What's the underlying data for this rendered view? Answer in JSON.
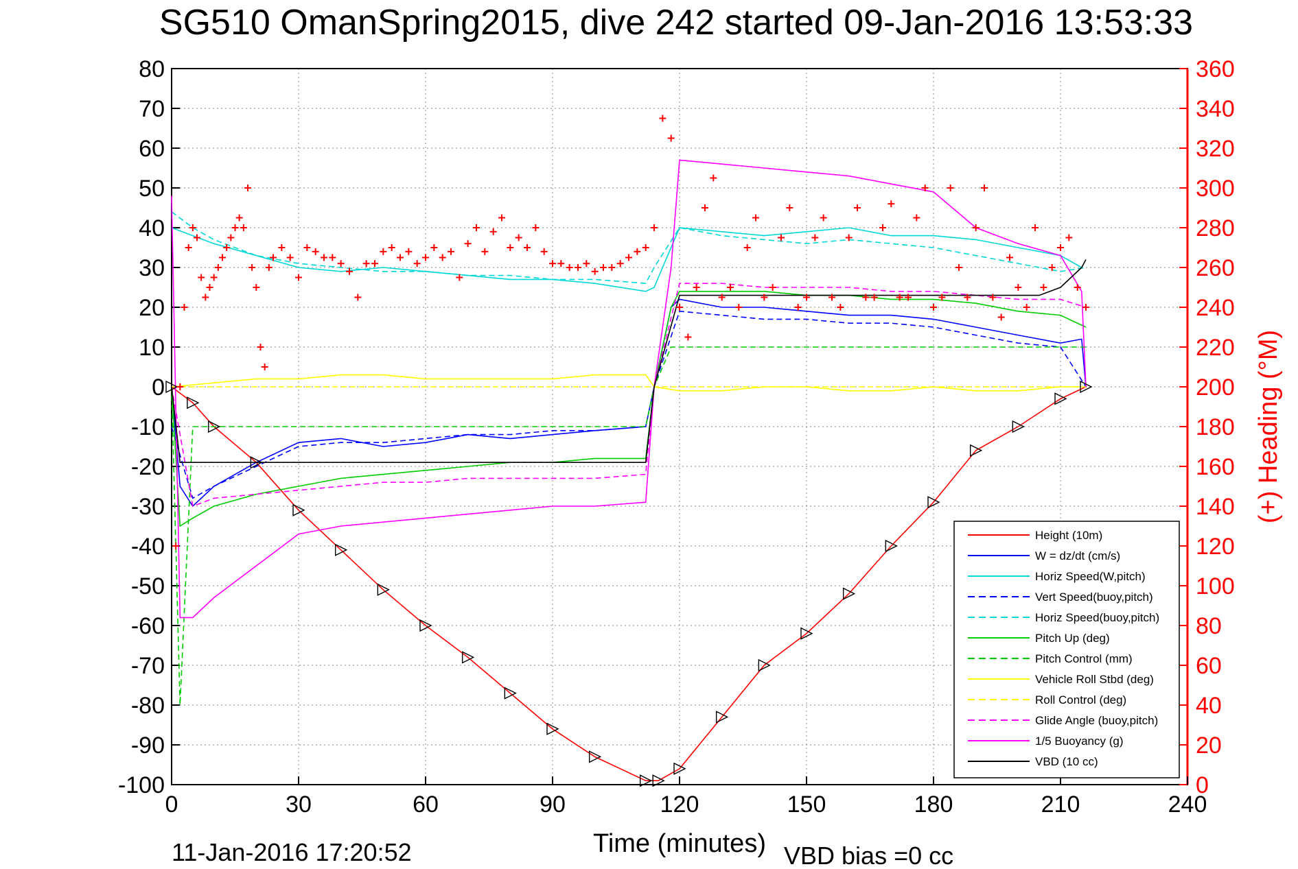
{
  "chart_data": {
    "type": "line",
    "title": "SG510 OmanSpring2015, dive 242 started 09-Jan-2016 13:53:33",
    "xlabel": "Time (minutes)",
    "ylabel_right": "(+) Heading (°M)",
    "footer_left": "11-Jan-2016 17:20:52",
    "footer_right": "VBD bias =0 cc",
    "xlim": [
      0,
      240
    ],
    "ylim": [
      -100,
      80
    ],
    "ylim_right": [
      0,
      360
    ],
    "x_ticks": [
      0,
      30,
      60,
      90,
      120,
      150,
      180,
      210,
      240
    ],
    "y_ticks": [
      -100,
      -90,
      -80,
      -70,
      -60,
      -50,
      -40,
      -30,
      -20,
      -10,
      0,
      10,
      20,
      30,
      40,
      50,
      60,
      70,
      80
    ],
    "y_ticks_right": [
      0,
      20,
      40,
      60,
      80,
      100,
      120,
      140,
      160,
      180,
      200,
      220,
      240,
      260,
      280,
      300,
      320,
      340,
      360
    ],
    "grid": true,
    "legend_position": "bottom-right",
    "series": [
      {
        "name": "Height (10m)",
        "color": "#ff0000",
        "style": "solid",
        "x": [
          0,
          5,
          10,
          20,
          30,
          40,
          50,
          60,
          70,
          80,
          90,
          100,
          112,
          115,
          120,
          130,
          140,
          150,
          160,
          170,
          180,
          190,
          200,
          210,
          216
        ],
        "y": [
          0,
          -4,
          -10,
          -19,
          -31,
          -41,
          -51,
          -60,
          -68,
          -77,
          -86,
          -93,
          -99,
          -99,
          -96,
          -83,
          -70,
          -62,
          -52,
          -40,
          -29,
          -16,
          -10,
          -3,
          0
        ]
      },
      {
        "name": "W = dz/dt (cm/s)",
        "color": "#0000ff",
        "style": "solid",
        "x": [
          0,
          2,
          5,
          10,
          20,
          30,
          40,
          50,
          60,
          70,
          80,
          90,
          100,
          112,
          114,
          118,
          120,
          130,
          140,
          150,
          160,
          170,
          180,
          190,
          200,
          210,
          215,
          216
        ],
        "y": [
          0,
          -25,
          -30,
          -25,
          -19,
          -14,
          -13,
          -15,
          -14,
          -12,
          -13,
          -12,
          -11,
          -10,
          0,
          20,
          22,
          20,
          20,
          19,
          18,
          18,
          17,
          15,
          13,
          11,
          12,
          0
        ]
      },
      {
        "name": "Horiz Speed(W,pitch)",
        "color": "#00d8d8",
        "style": "solid",
        "x": [
          0,
          5,
          10,
          20,
          30,
          40,
          50,
          60,
          70,
          80,
          90,
          100,
          112,
          114,
          116,
          120,
          130,
          140,
          150,
          160,
          170,
          180,
          190,
          200,
          210,
          215
        ],
        "y": [
          40,
          38,
          36,
          33,
          30,
          29,
          30,
          29,
          28,
          27,
          27,
          26,
          24,
          25,
          30,
          40,
          39,
          38,
          39,
          40,
          38,
          38,
          37,
          35,
          33,
          30
        ]
      },
      {
        "name": "Vert Speed(buoy,pitch)",
        "color": "#0000ff",
        "style": "dashed",
        "x": [
          0,
          5,
          10,
          20,
          30,
          40,
          50,
          60,
          70,
          80,
          90,
          100,
          112,
          114,
          120,
          130,
          140,
          150,
          160,
          170,
          180,
          190,
          200,
          210,
          216
        ],
        "y": [
          -10,
          -28,
          -25,
          -20,
          -15,
          -14,
          -14,
          -13,
          -12,
          -12,
          -11,
          -11,
          -10,
          0,
          19,
          18,
          17,
          17,
          16,
          16,
          15,
          13,
          11,
          10,
          0
        ]
      },
      {
        "name": "Horiz Speed(buoy,pitch)",
        "color": "#00d8d8",
        "style": "dashed",
        "x": [
          0,
          5,
          10,
          20,
          30,
          40,
          50,
          60,
          70,
          80,
          90,
          100,
          112,
          114,
          120,
          130,
          140,
          150,
          160,
          170,
          180,
          190,
          200,
          210,
          216
        ],
        "y": [
          44,
          40,
          37,
          33,
          31,
          30,
          29,
          29,
          28,
          28,
          27,
          27,
          26,
          30,
          40,
          38,
          37,
          36,
          37,
          36,
          35,
          33,
          31,
          29,
          30
        ]
      },
      {
        "name": "Pitch Up (deg)",
        "color": "#00cc00",
        "style": "solid",
        "x": [
          0,
          2,
          5,
          10,
          20,
          30,
          40,
          50,
          60,
          70,
          80,
          90,
          100,
          112,
          114,
          118,
          120,
          130,
          140,
          150,
          160,
          170,
          180,
          190,
          200,
          210,
          216
        ],
        "y": [
          0,
          -35,
          -33,
          -30,
          -27,
          -25,
          -23,
          -22,
          -21,
          -20,
          -19,
          -19,
          -18,
          -18,
          0,
          20,
          24,
          24,
          24,
          23,
          23,
          22,
          22,
          21,
          19,
          18,
          15
        ]
      },
      {
        "name": "Pitch Control (mm)",
        "color": "#00cc00",
        "style": "dashed",
        "x": [
          0,
          2,
          5,
          112,
          114,
          118,
          215,
          216
        ],
        "y": [
          0,
          -80,
          -10,
          -10,
          0,
          10,
          10,
          10
        ]
      },
      {
        "name": "Vehicle Roll Stbd (deg)",
        "color": "#ffff00",
        "style": "solid",
        "x": [
          0,
          10,
          20,
          30,
          40,
          50,
          60,
          70,
          80,
          90,
          100,
          112,
          114,
          120,
          130,
          140,
          150,
          160,
          170,
          180,
          190,
          200,
          210,
          216
        ],
        "y": [
          0,
          1,
          2,
          2,
          3,
          3,
          2,
          2,
          2,
          2,
          3,
          3,
          0,
          -1,
          -1,
          0,
          0,
          -1,
          -1,
          0,
          -1,
          -1,
          0,
          0
        ]
      },
      {
        "name": "Roll Control (deg)",
        "color": "#ffff00",
        "style": "dashed",
        "x": [
          0,
          112,
          114,
          216
        ],
        "y": [
          0,
          0,
          0,
          0
        ]
      },
      {
        "name": "Glide Angle (buoy,pitch)",
        "color": "#ff00ff",
        "style": "dashed",
        "x": [
          0,
          5,
          10,
          20,
          30,
          40,
          50,
          60,
          70,
          80,
          90,
          100,
          112,
          114,
          120,
          130,
          140,
          150,
          160,
          170,
          180,
          190,
          200,
          210,
          216
        ],
        "y": [
          0,
          -30,
          -28,
          -27,
          -26,
          -25,
          -24,
          -24,
          -23,
          -23,
          -23,
          -23,
          -22,
          0,
          26,
          26,
          25,
          25,
          25,
          24,
          24,
          23,
          22,
          22,
          20
        ]
      },
      {
        "name": "1/5 Buoyancy (g)",
        "color": "#ff00ff",
        "style": "solid",
        "x": [
          0,
          2,
          5,
          10,
          20,
          30,
          40,
          50,
          60,
          70,
          80,
          90,
          100,
          112,
          114,
          118,
          120,
          130,
          140,
          150,
          160,
          170,
          180,
          190,
          200,
          210,
          215,
          216
        ],
        "y": [
          48,
          -58,
          -58,
          -53,
          -45,
          -37,
          -35,
          -34,
          -33,
          -32,
          -31,
          -30,
          -30,
          -29,
          0,
          30,
          57,
          56,
          55,
          54,
          53,
          51,
          49,
          40,
          36,
          33,
          24,
          0
        ]
      },
      {
        "name": "VBD (10 cc)",
        "color": "#000000",
        "style": "solid",
        "x": [
          0,
          2,
          112,
          114,
          120,
          205,
          210,
          215,
          216
        ],
        "y": [
          0,
          -19,
          -19,
          0,
          23,
          23,
          25,
          30,
          32
        ]
      }
    ],
    "heading_series": {
      "name": "(+) Heading (°M)",
      "color": "#ff0000",
      "marker": "+",
      "x": [
        1,
        2,
        3,
        4,
        5,
        6,
        7,
        8,
        9,
        10,
        11,
        12,
        13,
        14,
        15,
        16,
        17,
        18,
        19,
        20,
        21,
        22,
        23,
        24,
        26,
        28,
        30,
        32,
        34,
        36,
        38,
        40,
        42,
        44,
        46,
        48,
        50,
        52,
        54,
        56,
        58,
        60,
        62,
        64,
        66,
        68,
        70,
        72,
        74,
        76,
        78,
        80,
        82,
        84,
        86,
        88,
        90,
        92,
        94,
        96,
        98,
        100,
        102,
        104,
        106,
        108,
        110,
        112,
        114,
        116,
        118,
        120,
        122,
        124,
        126,
        128,
        130,
        132,
        134,
        136,
        138,
        140,
        142,
        144,
        146,
        148,
        150,
        152,
        154,
        156,
        158,
        160,
        162,
        164,
        166,
        168,
        170,
        172,
        174,
        176,
        178,
        180,
        182,
        184,
        186,
        188,
        190,
        192,
        194,
        196,
        198,
        200,
        202,
        204,
        206,
        208,
        210,
        212,
        214,
        216
      ],
      "y": [
        120,
        200,
        240,
        270,
        280,
        275,
        255,
        245,
        250,
        255,
        260,
        265,
        270,
        275,
        280,
        285,
        280,
        300,
        260,
        250,
        220,
        210,
        260,
        265,
        270,
        265,
        255,
        270,
        268,
        265,
        265,
        262,
        258,
        245,
        262,
        262,
        268,
        270,
        265,
        268,
        262,
        265,
        270,
        265,
        268,
        255,
        272,
        280,
        268,
        278,
        285,
        270,
        275,
        270,
        280,
        268,
        262,
        262,
        260,
        260,
        262,
        258,
        260,
        260,
        262,
        265,
        268,
        270,
        280,
        335,
        325,
        240,
        225,
        250,
        290,
        305,
        245,
        250,
        240,
        270,
        285,
        245,
        250,
        275,
        290,
        240,
        245,
        275,
        285,
        245,
        240,
        275,
        290,
        245,
        245,
        280,
        292,
        245,
        245,
        285,
        300,
        240,
        245,
        300,
        260,
        245,
        280,
        300,
        245,
        235,
        265,
        250,
        240,
        280,
        250,
        260,
        270,
        275,
        250,
        240
      ]
    }
  }
}
